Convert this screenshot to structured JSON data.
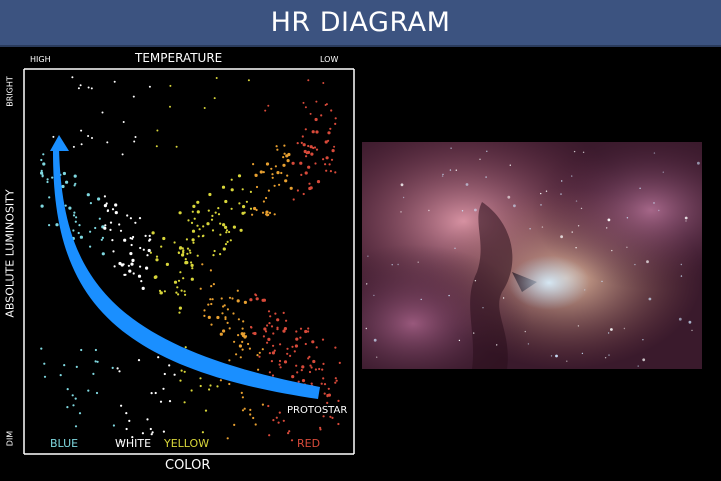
{
  "header": {
    "title": "HR DIAGRAM"
  },
  "diagram": {
    "temperature_label": "TEMPERATURE",
    "temp_high": "HIGH",
    "temp_low": "LOW",
    "luminosity_label": "ABSOLUTE LUMINOSITY",
    "lum_bright": "BRIGHT",
    "lum_dim": "DIM",
    "color_label": "COLOR",
    "color_blue": "BLUE",
    "color_white": "WHITE",
    "color_yellow": "YELLOW",
    "color_red": "RED",
    "protostar_label": "PROTOSTAR",
    "colors": {
      "blue": "#7fd8e0",
      "white": "#ffffff",
      "yellow": "#d8d63a",
      "orange": "#e8a030",
      "red": "#d84a3a",
      "arrow": "#1a8fff"
    }
  },
  "image": {
    "subject": "nebula-photo"
  }
}
